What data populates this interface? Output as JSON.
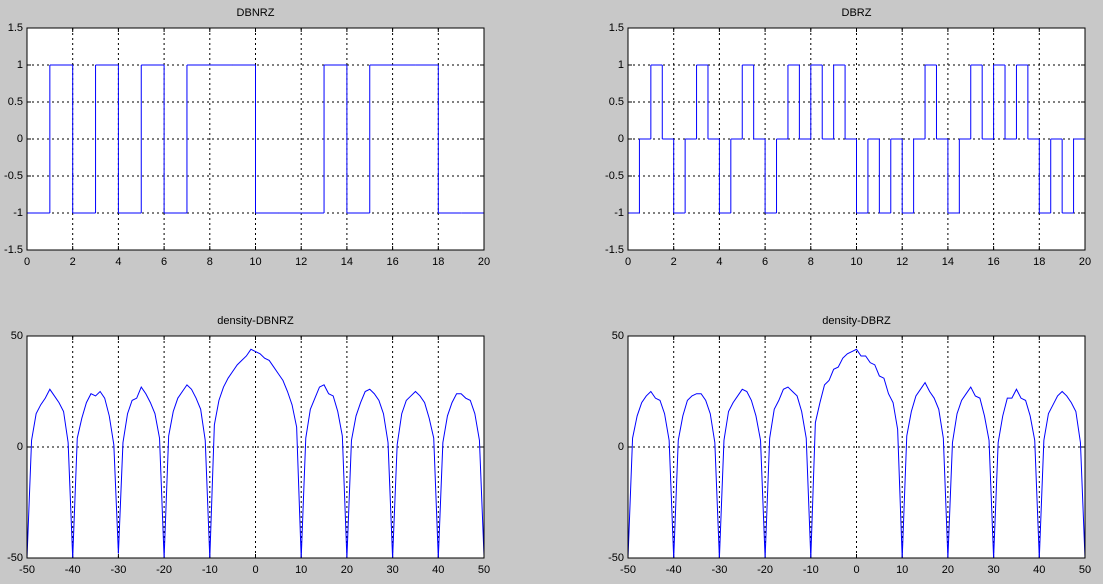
{
  "chart_data": [
    {
      "type": "step",
      "title": "DBNRZ",
      "color": "#0000ff",
      "grid": true,
      "x": [
        0,
        1,
        2,
        3,
        4,
        5,
        6,
        7,
        8,
        9,
        10,
        11,
        12,
        13,
        14,
        15,
        16,
        17,
        18,
        19
      ],
      "values": [
        -1,
        1,
        -1,
        1,
        -1,
        1,
        -1,
        1,
        1,
        1,
        -1,
        -1,
        -1,
        1,
        -1,
        1,
        1,
        1,
        -1,
        -1
      ],
      "xlim": [
        0,
        20
      ],
      "xticks": [
        0,
        2,
        4,
        6,
        8,
        10,
        12,
        14,
        16,
        18,
        20
      ],
      "ylim": [
        -1.5,
        1.5
      ],
      "yticks": [
        -1.5,
        -1,
        -0.5,
        0,
        0.5,
        1,
        1.5
      ]
    },
    {
      "type": "step",
      "title": "DBRZ",
      "color": "#0000ff",
      "grid": true,
      "x": [
        0,
        0.5,
        1,
        1.5,
        2,
        2.5,
        3,
        3.5,
        4,
        4.5,
        5,
        5.5,
        6,
        6.5,
        7,
        7.5,
        8,
        8.5,
        9,
        9.5,
        10,
        10.5,
        11,
        11.5,
        12,
        12.5,
        13,
        13.5,
        14,
        14.5,
        15,
        15.5,
        16,
        16.5,
        17,
        17.5,
        18,
        18.5,
        19,
        19.5
      ],
      "values": [
        -1,
        0,
        1,
        0,
        -1,
        0,
        1,
        0,
        -1,
        0,
        1,
        0,
        -1,
        0,
        1,
        0,
        1,
        0,
        1,
        0,
        -1,
        0,
        -1,
        0,
        -1,
        0,
        1,
        0,
        -1,
        0,
        1,
        0,
        1,
        0,
        1,
        0,
        -1,
        0,
        -1,
        0
      ],
      "xlim": [
        0,
        20
      ],
      "xticks": [
        0,
        2,
        4,
        6,
        8,
        10,
        12,
        14,
        16,
        18,
        20
      ],
      "ylim": [
        -1.5,
        1.5
      ],
      "yticks": [
        -1.5,
        -1,
        -0.5,
        0,
        0.5,
        1,
        1.5
      ]
    },
    {
      "type": "line",
      "title": "density-DBNRZ",
      "color": "#0000ff",
      "grid": true,
      "x": [
        -50,
        -49,
        -48,
        -47,
        -46,
        -45,
        -44,
        -43,
        -42,
        -41,
        -40,
        -39,
        -38,
        -37,
        -36,
        -35,
        -34,
        -33,
        -32,
        -31,
        -30,
        -29,
        -28,
        -27,
        -26,
        -25,
        -24,
        -23,
        -22,
        -21,
        -20,
        -19,
        -18,
        -17,
        -16,
        -15,
        -14,
        -13,
        -12,
        -11,
        -10,
        -9,
        -8,
        -7,
        -6,
        -5,
        -4,
        -3,
        -2,
        -1,
        0,
        1,
        2,
        3,
        4,
        5,
        6,
        7,
        8,
        9,
        10,
        11,
        12,
        13,
        14,
        15,
        16,
        17,
        18,
        19,
        20,
        21,
        22,
        23,
        24,
        25,
        26,
        27,
        28,
        29,
        30,
        31,
        32,
        33,
        34,
        35,
        36,
        37,
        38,
        39,
        40,
        41,
        42,
        43,
        44,
        45,
        46,
        47,
        48,
        49,
        50
      ],
      "values": [
        -50,
        3,
        15,
        19,
        22,
        26,
        23,
        20,
        16,
        2,
        -50,
        4,
        13,
        20,
        24,
        23,
        25,
        22,
        14,
        1,
        -48,
        2,
        15,
        21,
        22,
        27,
        24,
        20,
        15,
        4,
        -50,
        5,
        16,
        22,
        25,
        28,
        26,
        22,
        17,
        3,
        -50,
        10,
        21,
        27,
        31,
        34,
        37,
        39,
        41,
        44,
        43,
        42,
        40,
        39,
        36,
        33,
        30,
        25,
        19,
        9,
        -50,
        4,
        17,
        22,
        27,
        28,
        24,
        23,
        16,
        5,
        -50,
        3,
        14,
        20,
        25,
        26,
        24,
        21,
        15,
        2,
        -50,
        1,
        15,
        21,
        23,
        25,
        23,
        20,
        13,
        4,
        -50,
        2,
        14,
        20,
        24,
        24,
        22,
        21,
        15,
        3,
        -49
      ],
      "xlim": [
        -50,
        50
      ],
      "xticks": [
        -50,
        -40,
        -30,
        -20,
        -10,
        0,
        10,
        20,
        30,
        40,
        50
      ],
      "ylim": [
        -50,
        50
      ],
      "yticks": [
        -50,
        0,
        50
      ]
    },
    {
      "type": "line",
      "title": "density-DBRZ",
      "color": "#0000ff",
      "grid": true,
      "x": [
        -50,
        -49,
        -48,
        -47,
        -46,
        -45,
        -44,
        -43,
        -42,
        -41,
        -40,
        -39,
        -38,
        -37,
        -36,
        -35,
        -34,
        -33,
        -32,
        -31,
        -30,
        -29,
        -28,
        -27,
        -26,
        -25,
        -24,
        -23,
        -22,
        -21,
        -20,
        -19,
        -18,
        -17,
        -16,
        -15,
        -14,
        -13,
        -12,
        -11,
        -10,
        -9,
        -8,
        -7,
        -6,
        -5,
        -4,
        -3,
        -2,
        -1,
        0,
        1,
        2,
        3,
        4,
        5,
        6,
        7,
        8,
        9,
        10,
        11,
        12,
        13,
        14,
        15,
        16,
        17,
        18,
        19,
        20,
        21,
        22,
        23,
        24,
        25,
        26,
        27,
        28,
        29,
        30,
        31,
        32,
        33,
        34,
        35,
        36,
        37,
        38,
        39,
        40,
        41,
        42,
        43,
        44,
        45,
        46,
        47,
        48,
        49,
        50
      ],
      "values": [
        -50,
        4,
        14,
        20,
        23,
        25,
        22,
        21,
        15,
        3,
        -50,
        3,
        14,
        21,
        23,
        24,
        24,
        21,
        15,
        2,
        -50,
        3,
        16,
        20,
        23,
        26,
        25,
        21,
        14,
        3,
        -50,
        4,
        17,
        21,
        26,
        27,
        25,
        23,
        16,
        4,
        -50,
        11,
        20,
        28,
        30,
        35,
        36,
        40,
        42,
        43,
        44,
        41,
        41,
        38,
        37,
        32,
        31,
        24,
        20,
        8,
        -50,
        5,
        16,
        23,
        26,
        29,
        25,
        22,
        17,
        4,
        -50,
        2,
        15,
        21,
        24,
        27,
        23,
        22,
        14,
        3,
        -50,
        2,
        14,
        22,
        22,
        26,
        22,
        21,
        14,
        3,
        -50,
        3,
        15,
        19,
        23,
        25,
        23,
        20,
        16,
        2,
        -50
      ],
      "xlim": [
        -50,
        50
      ],
      "xticks": [
        -50,
        -40,
        -30,
        -20,
        -10,
        0,
        10,
        20,
        30,
        40,
        50
      ],
      "ylim": [
        -50,
        50
      ],
      "yticks": [
        -50,
        0,
        50
      ]
    }
  ]
}
